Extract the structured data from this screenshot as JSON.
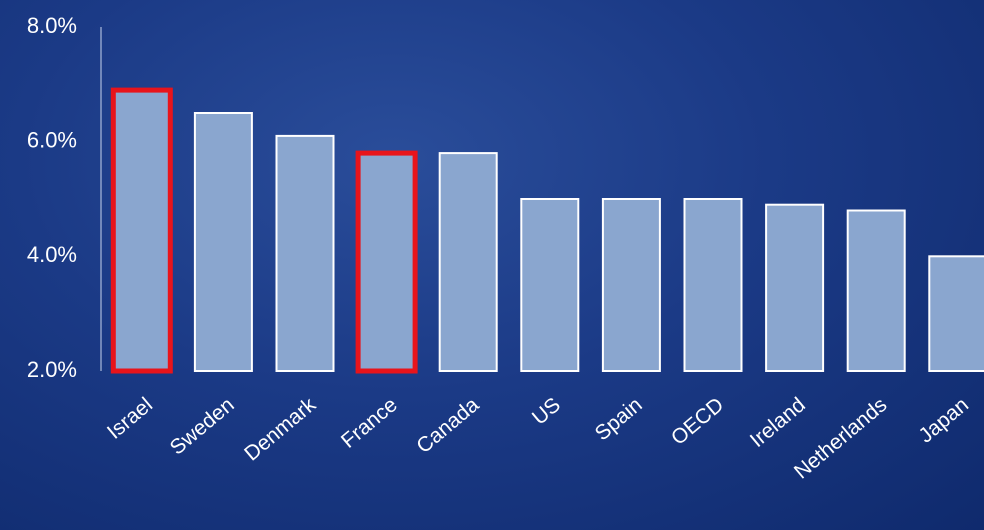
{
  "chart_data": {
    "type": "bar",
    "title": "",
    "xlabel": "",
    "ylabel": "",
    "categories": [
      "Israel",
      "Sweden",
      "Denmark",
      "France",
      "Canada",
      "US",
      "Spain",
      "OECD",
      "Ireland",
      "Netherlands",
      "Japan"
    ],
    "values": [
      6.9,
      6.5,
      6.1,
      5.8,
      5.8,
      5.0,
      5.0,
      5.0,
      4.9,
      4.8,
      4.0
    ],
    "highlighted": [
      "Israel",
      "France"
    ],
    "ylim": [
      2.0,
      8.0
    ],
    "yticks": [
      2.0,
      4.0,
      6.0,
      8.0
    ],
    "ytick_labels": [
      "2.0%",
      "4.0%",
      "6.0%",
      "8.0%"
    ],
    "grid": false,
    "legend": "none",
    "colors": {
      "bar_fill": "#8aa6cf",
      "bar_stroke": "#ffffff",
      "highlight_stroke": "#e8141b",
      "axis": "#c8d4ec",
      "text": "#ffffff"
    }
  }
}
